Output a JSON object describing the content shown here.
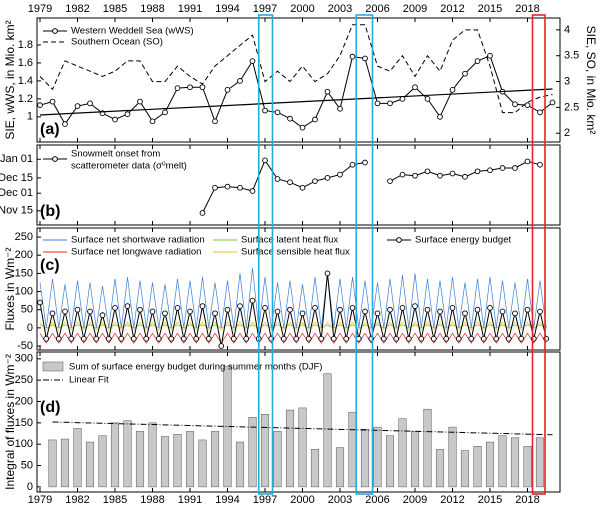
{
  "chart_data": [
    {
      "type": "line",
      "label": "(a)",
      "ylabel": "SIE, wWS, in Mio. km²",
      "y2label": "SIE, SO, in Mio. km²",
      "xlim": [
        1978.76,
        2020.6
      ],
      "xticks": [
        1979,
        1982,
        1985,
        1988,
        1991,
        1994,
        1997,
        2000,
        2003,
        2006,
        2009,
        2012,
        2015,
        2018
      ],
      "ylim": [
        0.72,
        2.1
      ],
      "yticks": [
        1,
        1.2,
        1.4,
        1.6,
        1.8
      ],
      "y2lim": [
        1.83,
        4.23
      ],
      "y2ticks": [
        2,
        2.5,
        3,
        3.5,
        4
      ],
      "x": [
        1979,
        1980,
        1981,
        1982,
        1983,
        1984,
        1985,
        1986,
        1987,
        1988,
        1989,
        1990,
        1991,
        1992,
        1993,
        1994,
        1995,
        1996,
        1997,
        1998,
        1999,
        2000,
        2001,
        2002,
        2003,
        2004,
        2005,
        2006,
        2007,
        2008,
        2009,
        2010,
        2011,
        2012,
        2013,
        2014,
        2015,
        2016,
        2017,
        2018,
        2019,
        2020
      ],
      "series": [
        {
          "name": "Western Weddell Sea (wWS)",
          "color": "#000000",
          "marker": "o",
          "values": [
            1.13,
            1.17,
            0.92,
            1.12,
            1.15,
            1.04,
            0.97,
            1.03,
            1.17,
            0.95,
            1.05,
            1.32,
            1.33,
            1.33,
            0.95,
            1.3,
            1.4,
            1.62,
            1.07,
            1.05,
            0.98,
            0.88,
            0.97,
            1.28,
            1.09,
            1.67,
            1.65,
            1.15,
            1.15,
            1.2,
            1.33,
            1.2,
            1.0,
            1.3,
            1.48,
            1.62,
            1.68,
            1.28,
            1.14,
            1.13,
            1.05,
            1.16
          ]
        },
        {
          "name": "Southern Ocean (SO)",
          "color": "#000000",
          "dash": "dashed",
          "axis": "y2",
          "values": [
            3.1,
            2.85,
            3.4,
            3.3,
            3.2,
            3.1,
            3.2,
            3.4,
            3.4,
            3.0,
            3.0,
            3.3,
            3.1,
            2.95,
            3.3,
            3.5,
            3.7,
            3.9,
            3.0,
            3.2,
            3.0,
            3.3,
            3.0,
            3.15,
            3.5,
            4.1,
            4.1,
            3.3,
            3.2,
            3.5,
            3.1,
            3.5,
            3.2,
            3.8,
            4.0,
            4.0,
            3.3,
            2.4,
            2.4,
            2.6,
            2.7,
            2.75
          ]
        }
      ],
      "trend": {
        "x": [
          1979,
          2020
        ],
        "values": [
          1.02,
          1.31
        ],
        "color": "#000000"
      }
    },
    {
      "type": "line",
      "label": "(b)",
      "xlim": [
        1978.76,
        2020.6
      ],
      "xticks": [
        1979,
        1982,
        1985,
        1988,
        1991,
        1994,
        1997,
        2000,
        2003,
        2006,
        2009,
        2012,
        2015,
        2018
      ],
      "ylim": [
        1,
        74
      ],
      "yticks": [
        {
          "value": 14,
          "label": "Nov 15"
        },
        {
          "value": 30,
          "label": "Dec 01"
        },
        {
          "value": 44,
          "label": "Dec 15"
        },
        {
          "value": 61,
          "label": "Jan 01"
        }
      ],
      "x": [
        1992,
        1993,
        1994,
        1995,
        1996,
        1997,
        1998,
        1999,
        2000,
        2001,
        2002,
        2003,
        2004,
        2005,
        2006,
        2007,
        2008,
        2009,
        2010,
        2011,
        2012,
        2013,
        2014,
        2015,
        2016,
        2017,
        2018,
        2019
      ],
      "series": [
        {
          "name": [
            "Snowmelt onset from",
            "scatterometer data (σ⁰melt)"
          ],
          "color": "#000000",
          "marker": "o",
          "values": [
            12,
            35,
            36,
            35,
            32,
            60,
            43,
            40,
            35,
            41,
            44,
            47,
            56,
            58,
            null,
            41,
            47,
            46,
            50,
            46,
            48,
            45,
            50,
            51,
            53,
            53,
            59,
            56
          ]
        }
      ]
    },
    {
      "type": "line",
      "label": "(c)",
      "ylabel": "Fluxes in Wm⁻²",
      "xlim": [
        1978.76,
        2020.6
      ],
      "xticks": [
        1979,
        1982,
        1985,
        1988,
        1991,
        1994,
        1997,
        2000,
        2003,
        2006,
        2009,
        2012,
        2015,
        2018
      ],
      "ylim": [
        -61,
        275
      ],
      "yticks": [
        -50,
        0,
        50,
        100,
        150,
        200,
        250
      ],
      "x": [
        1979,
        1979.5,
        1980,
        1980.5,
        1981,
        1981.5,
        1982,
        1982.5,
        1983,
        1983.5,
        1984,
        1984.5,
        1985,
        1985.5,
        1986,
        1986.5,
        1987,
        1987.5,
        1988,
        1988.5,
        1989,
        1989.5,
        1990,
        1990.5,
        1991,
        1991.5,
        1992,
        1992.5,
        1993,
        1993.5,
        1994,
        1994.5,
        1995,
        1995.5,
        1996,
        1996.5,
        1997,
        1997.5,
        1998,
        1998.5,
        1999,
        1999.5,
        2000,
        2000.5,
        2001,
        2001.5,
        2002,
        2002.5,
        2003,
        2003.5,
        2004,
        2004.5,
        2005,
        2005.5,
        2006,
        2006.5,
        2007,
        2007.5,
        2008,
        2008.5,
        2009,
        2009.5,
        2010,
        2010.5,
        2011,
        2011.5,
        2012,
        2012.5,
        2013,
        2013.5,
        2014,
        2014.5,
        2015,
        2015.5,
        2016,
        2016.5,
        2017,
        2017.5,
        2018,
        2018.5,
        2019,
        2019.5
      ],
      "series": [
        {
          "name": "Surface net shortwave radiation",
          "color": "#3b7fd4",
          "values": [
            125,
            0,
            135,
            0,
            120,
            0,
            130,
            0,
            125,
            0,
            115,
            0,
            135,
            0,
            140,
            0,
            130,
            0,
            125,
            0,
            120,
            0,
            135,
            0,
            130,
            0,
            140,
            0,
            125,
            0,
            130,
            0,
            150,
            0,
            165,
            0,
            140,
            0,
            125,
            0,
            130,
            0,
            120,
            0,
            140,
            0,
            150,
            0,
            135,
            0,
            140,
            0,
            130,
            0,
            125,
            0,
            135,
            0,
            145,
            0,
            150,
            0,
            135,
            0,
            130,
            0,
            140,
            0,
            125,
            0,
            135,
            0,
            140,
            0,
            130,
            0,
            125,
            0,
            135,
            0,
            130,
            0
          ]
        },
        {
          "name": "Surface net longwave radiation",
          "color": "#e8262a",
          "values": [
            -15,
            -42,
            -15,
            -42,
            -15,
            -42,
            -15,
            -42,
            -15,
            -42,
            -15,
            -42,
            -15,
            -42,
            -15,
            -42,
            -15,
            -42,
            -15,
            -42,
            -15,
            -42,
            -15,
            -42,
            -15,
            -42,
            -15,
            -42,
            -15,
            -42,
            -15,
            -42,
            -15,
            -42,
            -15,
            -42,
            -15,
            -42,
            -15,
            -42,
            -15,
            -42,
            -15,
            -42,
            -15,
            -42,
            -15,
            -42,
            -15,
            -42,
            -15,
            -42,
            -15,
            -42,
            -15,
            -42,
            -15,
            -42,
            -15,
            -42,
            -15,
            -42,
            -15,
            -42,
            -15,
            -42,
            -15,
            -42,
            -15,
            -42,
            -15,
            -42,
            -15,
            -42,
            -15,
            -42,
            -15,
            -42,
            -15,
            -42,
            -15,
            -42
          ]
        },
        {
          "name": "Surface latent heat flux",
          "color": "#7fc241",
          "values": [
            8,
            0,
            8,
            0,
            8,
            0,
            8,
            0,
            8,
            0,
            8,
            0,
            8,
            0,
            8,
            0,
            8,
            0,
            8,
            0,
            8,
            0,
            8,
            0,
            8,
            0,
            8,
            0,
            8,
            0,
            8,
            0,
            8,
            0,
            8,
            0,
            8,
            0,
            8,
            0,
            8,
            0,
            8,
            0,
            8,
            0,
            8,
            0,
            8,
            0,
            8,
            0,
            8,
            0,
            8,
            0,
            8,
            0,
            8,
            0,
            8,
            0,
            8,
            0,
            8,
            0,
            8,
            0,
            8,
            0,
            8,
            0,
            8,
            0,
            8,
            0,
            8,
            0,
            8,
            0,
            8,
            0
          ]
        },
        {
          "name": "Surface sensible heat flux",
          "color": "#f0c020",
          "values": [
            15,
            -5,
            15,
            -5,
            15,
            -5,
            15,
            -5,
            15,
            -5,
            15,
            -5,
            15,
            -5,
            15,
            -5,
            15,
            -5,
            15,
            -5,
            15,
            -5,
            15,
            -5,
            15,
            -5,
            15,
            -5,
            15,
            -5,
            15,
            -5,
            15,
            -5,
            15,
            -5,
            15,
            -5,
            15,
            -5,
            15,
            -5,
            15,
            -5,
            15,
            -5,
            15,
            -5,
            15,
            -5,
            15,
            -5,
            15,
            -5,
            15,
            -5,
            15,
            -5,
            15,
            -5,
            15,
            -5,
            15,
            -5,
            15,
            -5,
            15,
            -5,
            15,
            -5,
            15,
            -5,
            15,
            -5,
            15,
            -5,
            15,
            -5,
            15,
            -5,
            15,
            -5
          ]
        },
        {
          "name": "Surface energy budget",
          "color": "#000000",
          "marker": "o",
          "values": [
            70,
            -30,
            40,
            -30,
            45,
            -30,
            50,
            -30,
            45,
            -30,
            35,
            -30,
            55,
            -30,
            60,
            -30,
            50,
            -30,
            45,
            -30,
            40,
            -30,
            55,
            -30,
            45,
            -30,
            60,
            -30,
            40,
            -50,
            50,
            -30,
            60,
            -30,
            75,
            -30,
            55,
            -30,
            45,
            -30,
            50,
            -30,
            40,
            -30,
            55,
            -30,
            150,
            -30,
            50,
            -30,
            55,
            -30,
            45,
            -30,
            40,
            -30,
            50,
            -30,
            55,
            -30,
            60,
            -30,
            50,
            -30,
            45,
            -30,
            55,
            -30,
            40,
            -30,
            50,
            -30,
            55,
            -30,
            45,
            -30,
            40,
            -30,
            50,
            -30,
            45,
            -30
          ]
        }
      ]
    },
    {
      "type": "bar",
      "label": "(d)",
      "ylabel": "Integral of fluxes in Wm⁻²",
      "xlim": [
        1978.76,
        2020.6
      ],
      "xticks": [
        1979,
        1982,
        1985,
        1988,
        1991,
        1994,
        1997,
        2000,
        2003,
        2006,
        2009,
        2012,
        2015,
        2018
      ],
      "ylim": [
        -12,
        316
      ],
      "yticks": [
        0,
        50,
        100,
        150,
        200,
        250,
        300
      ],
      "x": [
        1980,
        1981,
        1982,
        1983,
        1984,
        1985,
        1986,
        1987,
        1988,
        1989,
        1990,
        1991,
        1992,
        1993,
        1994,
        1995,
        1996,
        1997,
        1998,
        1999,
        2000,
        2001,
        2002,
        2003,
        2004,
        2005,
        2006,
        2007,
        2008,
        2009,
        2010,
        2011,
        2012,
        2013,
        2014,
        2015,
        2016,
        2017,
        2018,
        2019
      ],
      "series": [
        {
          "name": "Sum of surface energy budget during summer months (DJF)",
          "color": "#c8c8c8",
          "values": [
            110,
            112,
            137,
            105,
            120,
            150,
            155,
            130,
            150,
            118,
            123,
            130,
            110,
            130,
            283,
            105,
            163,
            170,
            130,
            180,
            185,
            88,
            265,
            92,
            175,
            135,
            140,
            120,
            160,
            130,
            182,
            88,
            140,
            85,
            95,
            105,
            120,
            115,
            95,
            115
          ]
        }
      ],
      "fit": {
        "name": "Linear Fit",
        "x": [
          1980,
          2020
        ],
        "values": [
          152,
          122
        ],
        "color": "#000000"
      }
    }
  ],
  "highlights": [
    {
      "xlim": [
        1996.5,
        1997.6
      ],
      "color": "#29a8e0"
    },
    {
      "xlim": [
        2004.3,
        2005.6
      ],
      "color": "#29a8e0"
    },
    {
      "xlim": [
        2018.4,
        2019.4
      ],
      "color": "#e0262a"
    }
  ]
}
